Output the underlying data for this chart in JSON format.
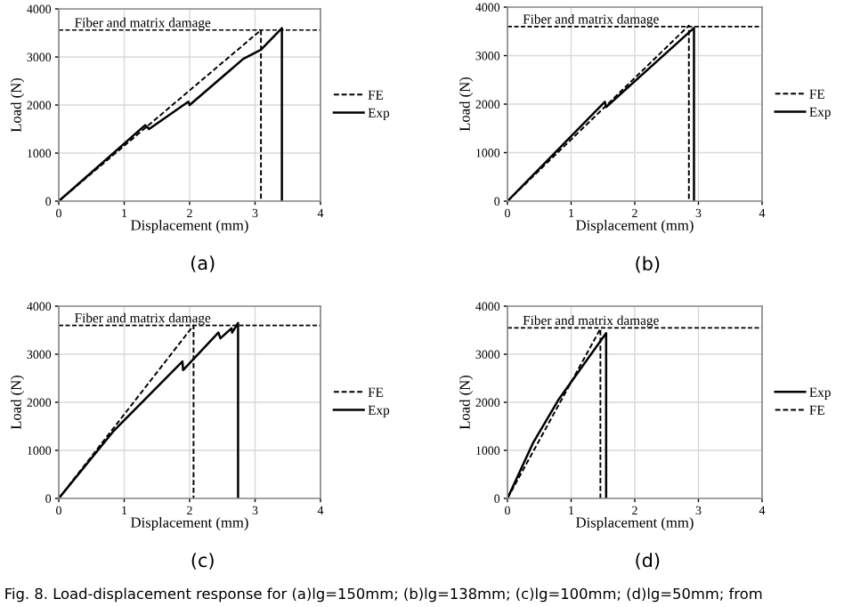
{
  "chart_data": [
    {
      "type": "line",
      "xlabel": "Displacement (mm)",
      "ylabel": "Load (N)",
      "xlim": [
        0,
        4
      ],
      "ylim": [
        0,
        4000
      ],
      "xticks": [
        0,
        1,
        2,
        3,
        4
      ],
      "yticks": [
        0,
        1000,
        2000,
        3000,
        4000
      ],
      "grid": true,
      "legend": "right",
      "marker": "none",
      "ref_lines": [
        {
          "axis": "y",
          "value": 3560,
          "label": "Fiber and matrix damage",
          "line_style": "dashed",
          "color": "#000000"
        }
      ],
      "annotations": [
        "(a)"
      ],
      "series": [
        {
          "name": "FE",
          "color": "#000000",
          "line_style": "dashed",
          "x": [
            0,
            3.09,
            3.09
          ],
          "values": [
            0,
            3560,
            0
          ]
        },
        {
          "name": "Exp",
          "color": "#000000",
          "line_style": "solid",
          "x": [
            0,
            1.32,
            1.38,
            1.98,
            2.0,
            2.82,
            3.09,
            3.41,
            3.41
          ],
          "values": [
            0,
            1580,
            1500,
            2070,
            2000,
            2960,
            3150,
            3600,
            0
          ]
        }
      ]
    },
    {
      "type": "line",
      "xlabel": "Displacement (mm)",
      "ylabel": "Load (N)",
      "xlim": [
        0,
        4
      ],
      "ylim": [
        0,
        4000
      ],
      "xticks": [
        0,
        1,
        2,
        3,
        4
      ],
      "yticks": [
        0,
        1000,
        2000,
        3000,
        4000
      ],
      "grid": true,
      "legend": "right",
      "marker": "none",
      "ref_lines": [
        {
          "axis": "y",
          "value": 3600,
          "label": "Fiber and matrix damage",
          "line_style": "dashed",
          "color": "#000000"
        }
      ],
      "annotations": [
        "(b)"
      ],
      "series": [
        {
          "name": "FE",
          "color": "#000000",
          "line_style": "dashed",
          "x": [
            0,
            2.85,
            2.85
          ],
          "values": [
            0,
            3620,
            0
          ]
        },
        {
          "name": "Exp",
          "color": "#000000",
          "line_style": "solid",
          "x": [
            0,
            1.53,
            1.55,
            2.93,
            2.93
          ],
          "values": [
            0,
            2050,
            1940,
            3570,
            0
          ]
        }
      ]
    },
    {
      "type": "line",
      "xlabel": "Displacement (mm)",
      "ylabel": "Load (N)",
      "xlim": [
        0,
        4
      ],
      "ylim": [
        0,
        4000
      ],
      "xticks": [
        0,
        1,
        2,
        3,
        4
      ],
      "yticks": [
        0,
        1000,
        2000,
        3000,
        4000
      ],
      "grid": true,
      "legend": "right",
      "marker": "none",
      "ref_lines": [
        {
          "axis": "y",
          "value": 3600,
          "label": "Fiber and matrix damage",
          "line_style": "dashed",
          "color": "#000000"
        }
      ],
      "annotations": [
        "(c)"
      ],
      "series": [
        {
          "name": "FE",
          "color": "#000000",
          "line_style": "dashed",
          "x": [
            0,
            2.06,
            2.06
          ],
          "values": [
            0,
            3600,
            0
          ]
        },
        {
          "name": "Exp",
          "color": "#000000",
          "line_style": "solid",
          "x": [
            0,
            0.83,
            1.89,
            1.9,
            2.44,
            2.47,
            2.64,
            2.65,
            2.74,
            2.74
          ],
          "values": [
            0,
            1390,
            2850,
            2670,
            3450,
            3330,
            3540,
            3450,
            3650,
            0
          ]
        }
      ]
    },
    {
      "type": "line",
      "xlabel": "Displacement (mm)",
      "ylabel": "Load (N)",
      "xlim": [
        0,
        4
      ],
      "ylim": [
        0,
        4000
      ],
      "xticks": [
        0,
        1,
        2,
        3,
        4
      ],
      "yticks": [
        0,
        1000,
        2000,
        3000,
        4000
      ],
      "grid": true,
      "legend": "right",
      "marker": "none",
      "ref_lines": [
        {
          "axis": "y",
          "value": 3550,
          "label": "Fiber and matrix damage",
          "line_style": "dashed",
          "color": "#000000"
        }
      ],
      "annotations": [
        "(d)",
        "Fig. 8. Load-displacement response for (a)lg=150mm; (b)lg=138mm; (c)lg=100mm; (d)lg=50mm; from"
      ],
      "series": [
        {
          "name": "Exp",
          "color": "#000000",
          "line_style": "solid",
          "x": [
            0,
            0.4,
            0.8,
            1.55,
            1.55
          ],
          "values": [
            0,
            1150,
            2050,
            3440,
            0
          ]
        },
        {
          "name": "FE",
          "color": "#000000",
          "line_style": "dashed",
          "x": [
            0,
            1.46,
            1.46
          ],
          "values": [
            0,
            3530,
            0
          ]
        }
      ]
    }
  ]
}
